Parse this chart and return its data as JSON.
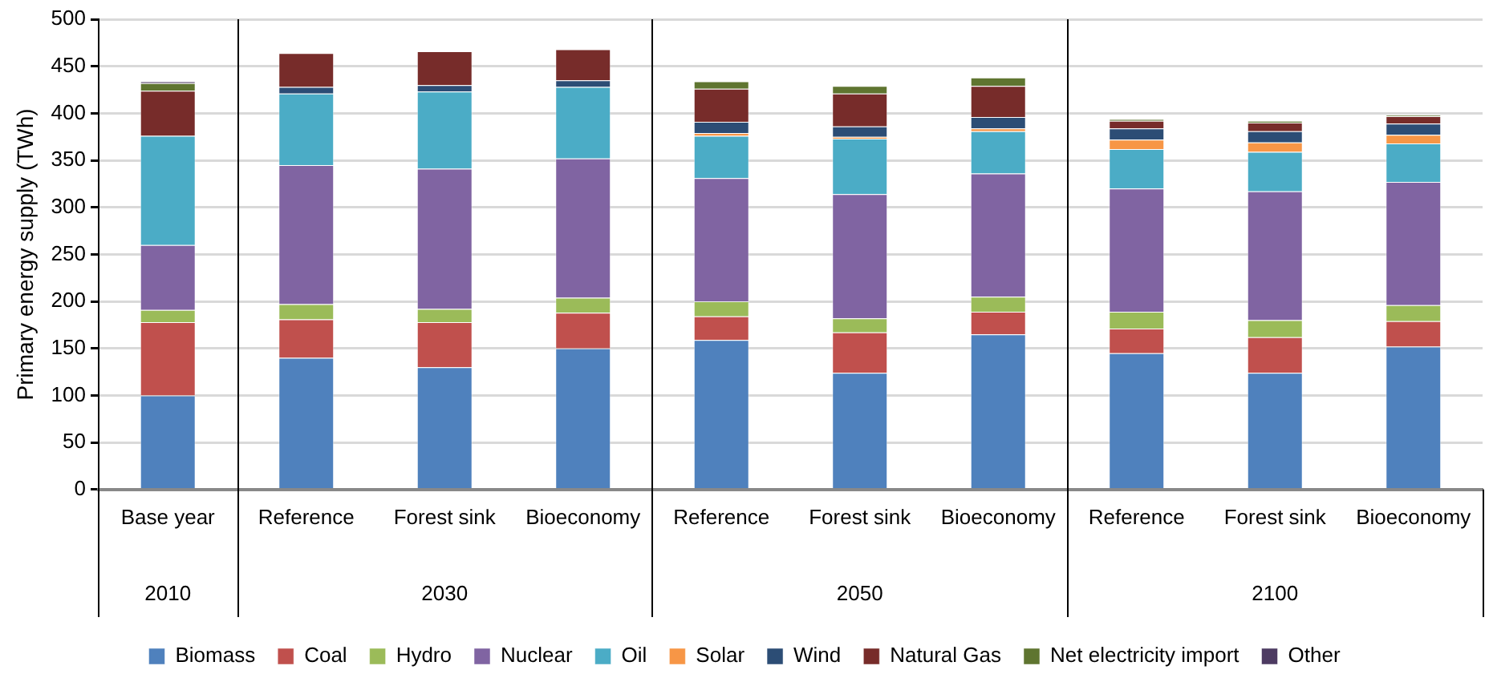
{
  "chart_data": {
    "type": "bar",
    "stacked": true,
    "ylabel": "Primary energy supply (TWh)",
    "categories": [
      "Base year",
      "Reference",
      "Forest sink",
      "Bioeconomy",
      "Reference",
      "Forest sink",
      "Bioeconomy",
      "Reference",
      "Forest sink",
      "Bioeconomy"
    ],
    "annotations": [
      "2010",
      "2030",
      "2050",
      "2100"
    ],
    "ylim": [
      0,
      500
    ],
    "yticks": [
      0,
      50,
      100,
      150,
      200,
      250,
      300,
      350,
      400,
      450,
      500
    ],
    "grid": "y",
    "legend": "bottom",
    "series": [
      {
        "name": "Biomass",
        "color": "#4f81bd",
        "values": [
          100,
          140,
          130,
          150,
          159,
          124,
          165,
          145,
          124,
          152
        ]
      },
      {
        "name": "Coal",
        "color": "#c0504d",
        "values": [
          78,
          41,
          48,
          38,
          25,
          43,
          24,
          26,
          38,
          27
        ]
      },
      {
        "name": "Hydro",
        "color": "#9bbb59",
        "values": [
          13,
          16,
          14,
          16,
          16,
          15,
          16,
          18,
          18,
          17
        ]
      },
      {
        "name": "Nuclear",
        "color": "#8064a2",
        "values": [
          69,
          148,
          149,
          148,
          131,
          132,
          131,
          131,
          137,
          131
        ]
      },
      {
        "name": "Oil",
        "color": "#4bacc6",
        "values": [
          116,
          76,
          82,
          76,
          45,
          59,
          45,
          42,
          42,
          41
        ]
      },
      {
        "name": "Solar",
        "color": "#f79646",
        "values": [
          0,
          0,
          0,
          0,
          3,
          2,
          3,
          10,
          10,
          9
        ]
      },
      {
        "name": "Wind",
        "color": "#2c4d75",
        "values": [
          0,
          7,
          7,
          7,
          12,
          11,
          12,
          12,
          12,
          12
        ]
      },
      {
        "name": "Natural Gas",
        "color": "#772c2a",
        "values": [
          48,
          36,
          36,
          33,
          35,
          35,
          33,
          8,
          9,
          8
        ]
      },
      {
        "name": "Net electricity import",
        "color": "#5f7530",
        "values": [
          8,
          0,
          0,
          0,
          8,
          8,
          9,
          2,
          2,
          1
        ]
      },
      {
        "name": "Other",
        "color": "#4d3b62",
        "values": [
          2,
          0,
          0,
          0,
          0,
          0,
          0,
          0,
          0,
          0
        ]
      }
    ]
  }
}
